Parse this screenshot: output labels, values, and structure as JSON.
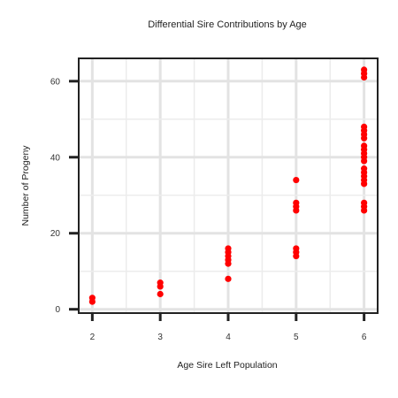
{
  "chart_data": {
    "type": "scatter",
    "title": "Differential Sire Contributions by Age",
    "xlabel": "Age Sire Left Population",
    "ylabel": "Number of Progeny",
    "xlim": [
      1.8,
      6.2
    ],
    "ylim": [
      -1,
      66
    ],
    "xticks": [
      2,
      3,
      4,
      5,
      6
    ],
    "yticks": [
      0,
      20,
      40,
      60
    ],
    "grid": true,
    "marker_color": "#ff0000",
    "points": [
      {
        "x": 2,
        "y": 2
      },
      {
        "x": 2,
        "y": 3
      },
      {
        "x": 3,
        "y": 4
      },
      {
        "x": 3,
        "y": 6
      },
      {
        "x": 3,
        "y": 7
      },
      {
        "x": 4,
        "y": 8
      },
      {
        "x": 4,
        "y": 12
      },
      {
        "x": 4,
        "y": 13
      },
      {
        "x": 4,
        "y": 14
      },
      {
        "x": 4,
        "y": 15
      },
      {
        "x": 4,
        "y": 16
      },
      {
        "x": 5,
        "y": 14
      },
      {
        "x": 5,
        "y": 15
      },
      {
        "x": 5,
        "y": 16
      },
      {
        "x": 5,
        "y": 26
      },
      {
        "x": 5,
        "y": 27
      },
      {
        "x": 5,
        "y": 28
      },
      {
        "x": 5,
        "y": 34
      },
      {
        "x": 6,
        "y": 26
      },
      {
        "x": 6,
        "y": 27
      },
      {
        "x": 6,
        "y": 28
      },
      {
        "x": 6,
        "y": 33
      },
      {
        "x": 6,
        "y": 34
      },
      {
        "x": 6,
        "y": 35
      },
      {
        "x": 6,
        "y": 36
      },
      {
        "x": 6,
        "y": 37
      },
      {
        "x": 6,
        "y": 39
      },
      {
        "x": 6,
        "y": 40
      },
      {
        "x": 6,
        "y": 41
      },
      {
        "x": 6,
        "y": 42
      },
      {
        "x": 6,
        "y": 43
      },
      {
        "x": 6,
        "y": 45
      },
      {
        "x": 6,
        "y": 46
      },
      {
        "x": 6,
        "y": 47
      },
      {
        "x": 6,
        "y": 48
      },
      {
        "x": 6,
        "y": 61
      },
      {
        "x": 6,
        "y": 62
      },
      {
        "x": 6,
        "y": 63
      }
    ]
  }
}
